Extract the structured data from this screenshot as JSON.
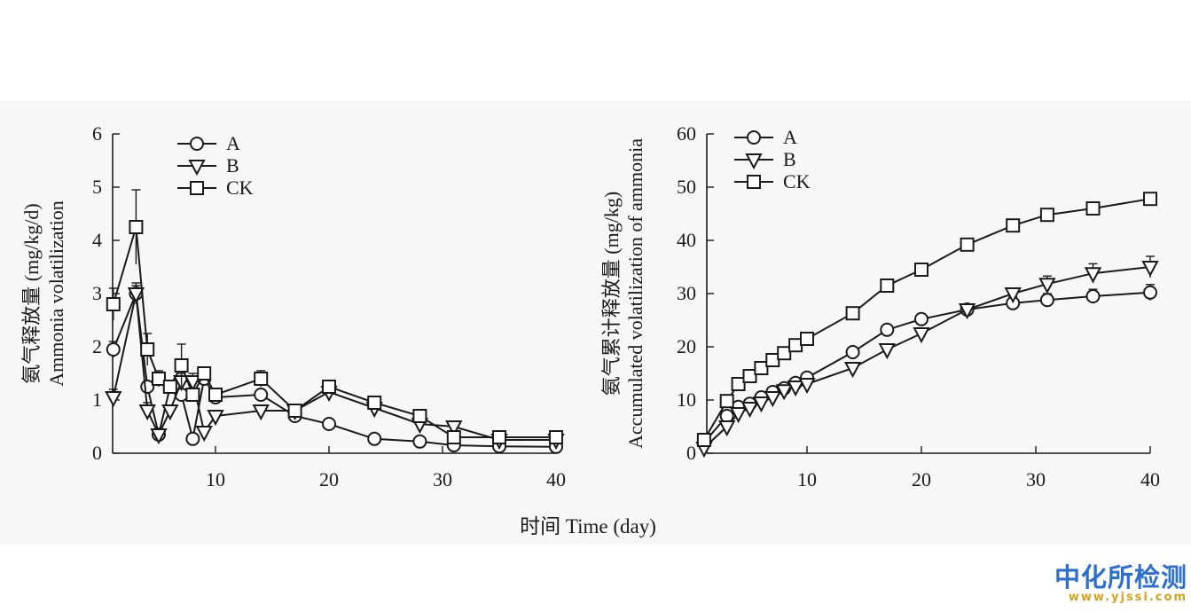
{
  "shared_xlabel": "时间 Time (day)",
  "watermark": {
    "name": "中化所检测",
    "url": "www.yjssi.com"
  },
  "colors": {
    "line": "#1a1a1a",
    "marker_fill": "#ffffff",
    "panel_bg": "#f7f7f7",
    "watermark_blue": "#2c6fd1",
    "watermark_gold": "#d4a21a"
  },
  "chart_data": [
    {
      "type": "line",
      "title": "",
      "ylabel_cn": "氨气释放量 (mg/kg/d)",
      "ylabel_en": "Ammonia volatilization",
      "xlim": [
        1,
        40
      ],
      "ylim": [
        0,
        6
      ],
      "xticks": [
        10,
        20,
        30,
        40
      ],
      "yticks": [
        0,
        1,
        2,
        3,
        4,
        5,
        6
      ],
      "legend_position": "top-left",
      "series": [
        {
          "name": "A",
          "marker": "circle",
          "x": [
            1,
            3,
            4,
            5,
            6,
            7,
            8,
            9,
            10,
            14,
            17,
            20,
            24,
            28,
            31,
            35,
            40
          ],
          "y": [
            1.95,
            3.0,
            1.25,
            0.35,
            1.25,
            1.1,
            0.27,
            1.4,
            1.05,
            1.1,
            0.7,
            0.55,
            0.27,
            0.22,
            0.15,
            0.13,
            0.12
          ],
          "err": [
            0.15,
            0.15,
            0.1,
            0.05,
            0.1,
            0.1,
            0.03,
            0.1,
            0.05,
            0.1,
            0.05,
            0.05,
            0.08,
            0.03,
            0.03,
            0.03,
            0.03
          ]
        },
        {
          "name": "B",
          "marker": "triangle-down",
          "x": [
            1,
            3,
            4,
            5,
            6,
            7,
            8,
            9,
            10,
            14,
            17,
            20,
            24,
            28,
            31,
            35,
            40
          ],
          "y": [
            1.05,
            3.0,
            0.8,
            0.35,
            0.8,
            1.35,
            1.35,
            0.4,
            0.7,
            0.8,
            0.8,
            1.15,
            0.85,
            0.55,
            0.5,
            0.25,
            0.25
          ],
          "err": [
            0.15,
            0.2,
            0.15,
            0.05,
            0.1,
            0.15,
            0.15,
            0.1,
            0.08,
            0.08,
            0.05,
            0.1,
            0.1,
            0.08,
            0.08,
            0.03,
            0.03
          ]
        },
        {
          "name": "CK",
          "marker": "square",
          "x": [
            1,
            3,
            4,
            5,
            6,
            7,
            8,
            9,
            10,
            14,
            17,
            20,
            24,
            28,
            31,
            35,
            40
          ],
          "y": [
            2.8,
            4.25,
            1.95,
            1.4,
            1.25,
            1.65,
            1.1,
            1.5,
            1.1,
            1.4,
            0.8,
            1.25,
            0.95,
            0.7,
            0.3,
            0.3,
            0.3
          ],
          "err": [
            0.3,
            0.7,
            0.3,
            0.15,
            0.1,
            0.4,
            0.1,
            0.1,
            0.1,
            0.15,
            0.05,
            0.1,
            0.12,
            0.05,
            0.05,
            0.03,
            0.03
          ]
        }
      ]
    },
    {
      "type": "line",
      "title": "",
      "ylabel_cn": "氨气累计释放量 (mg/kg)",
      "ylabel_en": "Accumulated volatilization of ammonia",
      "xlim": [
        1,
        40
      ],
      "ylim": [
        0,
        60
      ],
      "xticks": [
        10,
        20,
        30,
        40
      ],
      "yticks": [
        0,
        10,
        20,
        30,
        40,
        50,
        60
      ],
      "legend_position": "top-left",
      "series": [
        {
          "name": "A",
          "marker": "circle",
          "x": [
            1,
            3,
            4,
            5,
            6,
            7,
            8,
            9,
            10,
            14,
            17,
            20,
            24,
            28,
            31,
            35,
            40
          ],
          "y": [
            2.0,
            7.0,
            8.7,
            9.3,
            10.5,
            11.5,
            12.2,
            13.2,
            14.2,
            19.0,
            23.2,
            25.2,
            27.0,
            28.2,
            28.8,
            29.5,
            30.2
          ],
          "err": [
            0.3,
            0.5,
            0.3,
            0.3,
            0.3,
            0.3,
            0.3,
            0.3,
            0.3,
            0.4,
            0.5,
            0.5,
            0.8,
            1.2,
            1.2,
            1.3,
            1.5
          ]
        },
        {
          "name": "B",
          "marker": "triangle-down",
          "x": [
            1,
            3,
            4,
            5,
            6,
            7,
            8,
            9,
            10,
            14,
            17,
            20,
            24,
            28,
            31,
            35,
            40
          ],
          "y": [
            1.0,
            5.0,
            7.5,
            8.5,
            9.5,
            10.5,
            11.8,
            12.5,
            13.0,
            16.0,
            19.5,
            22.5,
            27.0,
            30.0,
            31.8,
            33.8,
            35.0
          ],
          "err": [
            0.2,
            0.3,
            0.3,
            0.3,
            0.3,
            0.3,
            0.3,
            0.3,
            0.3,
            0.4,
            0.5,
            0.5,
            0.8,
            1.0,
            1.5,
            1.8,
            2.0
          ]
        },
        {
          "name": "CK",
          "marker": "square",
          "x": [
            1,
            3,
            4,
            5,
            6,
            7,
            8,
            9,
            10,
            14,
            17,
            20,
            24,
            28,
            31,
            35,
            40
          ],
          "y": [
            2.5,
            9.8,
            13.0,
            14.5,
            16.0,
            17.5,
            18.8,
            20.3,
            21.5,
            26.3,
            31.5,
            34.5,
            39.2,
            42.8,
            44.8,
            46.0,
            47.8
          ],
          "err": [
            0.3,
            0.4,
            0.4,
            0.4,
            0.4,
            0.4,
            0.4,
            0.4,
            0.4,
            0.4,
            0.4,
            0.4,
            0.4,
            0.4,
            0.4,
            0.4,
            0.4
          ]
        }
      ]
    }
  ]
}
